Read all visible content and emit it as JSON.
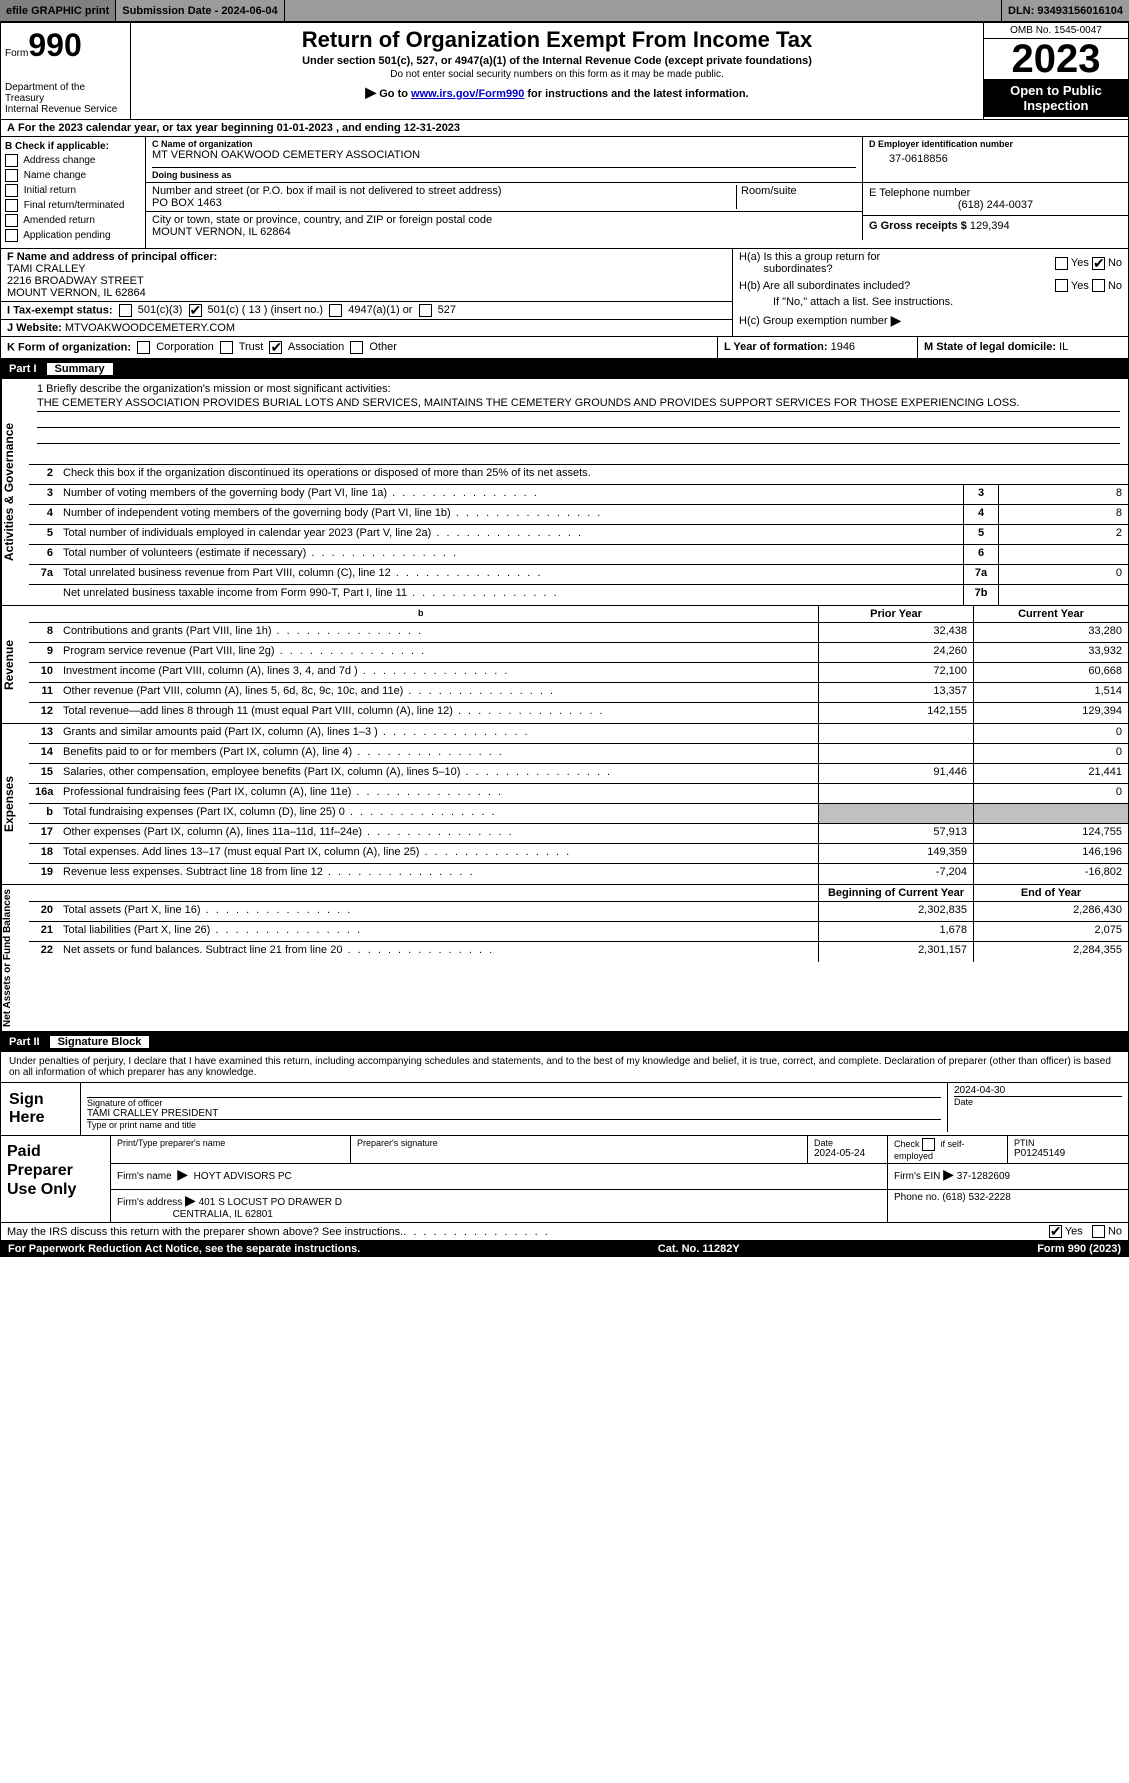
{
  "colors": {
    "topbar_bg": "#9b9b9b",
    "black": "#000000",
    "white": "#ffffff",
    "grey_cell": "#c0c0c0",
    "link": "#0000cc"
  },
  "topbar": {
    "efile": "efile GRAPHIC print",
    "submission": "Submission Date - 2024-06-04",
    "dln": "DLN: 93493156016104"
  },
  "header": {
    "form_label": "Form",
    "form_num": "990",
    "dept": "Department of the Treasury",
    "irs": "Internal Revenue Service",
    "title": "Return of Organization Exempt From Income Tax",
    "sub": "Under section 501(c), 527, or 4947(a)(1) of the Internal Revenue Code (except private foundations)",
    "warn": "Do not enter social security numbers on this form as it may be made public.",
    "goto_pre": "Go to ",
    "goto_link": "www.irs.gov/Form990",
    "goto_post": " for instructions and the latest information.",
    "omb": "OMB No. 1545-0047",
    "year": "2023",
    "inspection": "Open to Public Inspection"
  },
  "line_a": "For the 2023 calendar year, or tax year beginning 01-01-2023    , and ending 12-31-2023",
  "box_b": {
    "title": "B Check if applicable:",
    "items": [
      "Address change",
      "Name change",
      "Initial return",
      "Final return/terminated",
      "Amended return",
      "Application pending"
    ]
  },
  "box_c": {
    "lbl_name": "C Name of organization",
    "name": "MT VERNON OAKWOOD CEMETERY ASSOCIATION",
    "lbl_dba": "Doing business as",
    "lbl_street": "Number and street (or P.O. box if mail is not delivered to street address)",
    "street": "PO BOX 1463",
    "lbl_room": "Room/suite",
    "lbl_city": "City or town, state or province, country, and ZIP or foreign postal code",
    "city": "MOUNT VERNON, IL  62864"
  },
  "box_d": {
    "lbl": "D Employer identification number",
    "val": "37-0618856"
  },
  "box_e": {
    "lbl": "E Telephone number",
    "val": "(618) 244-0037"
  },
  "box_g": {
    "lbl": "G Gross receipts $",
    "val": "129,394"
  },
  "box_f": {
    "lbl": "F Name and address of principal officer:",
    "name": "TAMI CRALLEY",
    "street": "2216 BROADWAY STREET",
    "city": "MOUNT VERNON, IL  62864"
  },
  "box_h": {
    "ha_lbl": "H(a)  Is this a group return for",
    "ha_lbl2": "subordinates?",
    "hb_lbl": "H(b)  Are all subordinates included?",
    "hb_note": "If \"No,\" attach a list. See instructions.",
    "hc_lbl": "H(c)  Group exemption number",
    "yes": "Yes",
    "no": "No",
    "ha_no_checked": true
  },
  "box_i": {
    "lbl": "I    Tax-exempt status:",
    "opts": [
      "501(c)(3)",
      "501(c) ( 13 ) (insert no.)",
      "4947(a)(1) or",
      "527"
    ],
    "checked_index": 1
  },
  "box_j": {
    "lbl": "J    Website:",
    "val": "MTVOAKWOODCEMETERY.COM"
  },
  "box_k": {
    "lbl": "K Form of organization:",
    "opts": [
      "Corporation",
      "Trust",
      "Association",
      "Other"
    ],
    "checked_index": 2
  },
  "box_l": {
    "lbl": "L Year of formation:",
    "val": "1946"
  },
  "box_m": {
    "lbl": "M State of legal domicile:",
    "val": "IL"
  },
  "part1": {
    "header": "Part I",
    "title": "Summary",
    "side_labels": [
      "Activities & Governance",
      "Revenue",
      "Expenses",
      "Net Assets or Fund Balances"
    ],
    "q1_lbl": "1   Briefly describe the organization's mission or most significant activities:",
    "q1_text": "THE CEMETERY ASSOCIATION PROVIDES BURIAL LOTS AND SERVICES, MAINTAINS THE CEMETERY GROUNDS AND PROVIDES SUPPORT SERVICES FOR THOSE EXPERIENCING LOSS.",
    "q2": "Check this box       if the organization discontinued its operations or disposed of more than 25% of its net assets.",
    "gov_lines": [
      {
        "n": "3",
        "t": "Number of voting members of the governing body (Part VI, line 1a)",
        "box": "3",
        "v": "8"
      },
      {
        "n": "4",
        "t": "Number of independent voting members of the governing body (Part VI, line 1b)",
        "box": "4",
        "v": "8"
      },
      {
        "n": "5",
        "t": "Total number of individuals employed in calendar year 2023 (Part V, line 2a)",
        "box": "5",
        "v": "2"
      },
      {
        "n": "6",
        "t": "Total number of volunteers (estimate if necessary)",
        "box": "6",
        "v": ""
      },
      {
        "n": "7a",
        "t": "Total unrelated business revenue from Part VIII, column (C), line 12",
        "box": "7a",
        "v": "0"
      },
      {
        "n": "",
        "t": "Net unrelated business taxable income from Form 990-T, Part I, line 11",
        "box": "7b",
        "v": ""
      }
    ],
    "col_headers": {
      "spacer": "b",
      "prior": "Prior Year",
      "current": "Current Year"
    },
    "rev_lines": [
      {
        "n": "8",
        "t": "Contributions and grants (Part VIII, line 1h)",
        "p": "32,438",
        "c": "33,280"
      },
      {
        "n": "9",
        "t": "Program service revenue (Part VIII, line 2g)",
        "p": "24,260",
        "c": "33,932"
      },
      {
        "n": "10",
        "t": "Investment income (Part VIII, column (A), lines 3, 4, and 7d )",
        "p": "72,100",
        "c": "60,668"
      },
      {
        "n": "11",
        "t": "Other revenue (Part VIII, column (A), lines 5, 6d, 8c, 9c, 10c, and 11e)",
        "p": "13,357",
        "c": "1,514"
      },
      {
        "n": "12",
        "t": "Total revenue—add lines 8 through 11 (must equal Part VIII, column (A), line 12)",
        "p": "142,155",
        "c": "129,394"
      }
    ],
    "exp_lines": [
      {
        "n": "13",
        "t": "Grants and similar amounts paid (Part IX, column (A), lines 1–3 )",
        "p": "",
        "c": "0"
      },
      {
        "n": "14",
        "t": "Benefits paid to or for members (Part IX, column (A), line 4)",
        "p": "",
        "c": "0"
      },
      {
        "n": "15",
        "t": "Salaries, other compensation, employee benefits (Part IX, column (A), lines 5–10)",
        "p": "91,446",
        "c": "21,441"
      },
      {
        "n": "16a",
        "t": "Professional fundraising fees (Part IX, column (A), line 11e)",
        "p": "",
        "c": "0"
      },
      {
        "n": "b",
        "t": "Total fundraising expenses (Part IX, column (D), line 25) 0",
        "p": "grey",
        "c": "grey"
      },
      {
        "n": "17",
        "t": "Other expenses (Part IX, column (A), lines 11a–11d, 11f–24e)",
        "p": "57,913",
        "c": "124,755"
      },
      {
        "n": "18",
        "t": "Total expenses. Add lines 13–17 (must equal Part IX, column (A), line 25)",
        "p": "149,359",
        "c": "146,196"
      },
      {
        "n": "19",
        "t": "Revenue less expenses. Subtract line 18 from line 12",
        "p": "-7,204",
        "c": "-16,802"
      }
    ],
    "net_headers": {
      "begin": "Beginning of Current Year",
      "end": "End of Year"
    },
    "net_lines": [
      {
        "n": "20",
        "t": "Total assets (Part X, line 16)",
        "p": "2,302,835",
        "c": "2,286,430"
      },
      {
        "n": "21",
        "t": "Total liabilities (Part X, line 26)",
        "p": "1,678",
        "c": "2,075"
      },
      {
        "n": "22",
        "t": "Net assets or fund balances. Subtract line 21 from line 20",
        "p": "2,301,157",
        "c": "2,284,355"
      }
    ]
  },
  "part2": {
    "header": "Part II",
    "title": "Signature Block",
    "declaration": "Under penalties of perjury, I declare that I have examined this return, including accompanying schedules and statements, and to the best of my knowledge and belief, it is true, correct, and complete. Declaration of preparer (other than officer) is based on all information of which preparer has any knowledge."
  },
  "sign": {
    "label": "Sign Here",
    "sig_lbl": "Signature of officer",
    "name": "TAMI CRALLEY PRESIDENT",
    "typed_lbl": "Type or print name and title",
    "date_lbl": "Date",
    "date": "2024-04-30"
  },
  "paid": {
    "label": "Paid Preparer Use Only",
    "h_name": "Print/Type preparer's name",
    "h_sig": "Preparer's signature",
    "h_date": "Date",
    "date": "2024-05-24",
    "h_check": "Check        if self-employed",
    "h_ptin": "PTIN",
    "ptin": "P01245149",
    "firm_lbl": "Firm's name",
    "firm": "HOYT ADVISORS PC",
    "ein_lbl": "Firm's EIN",
    "ein": "37-1282609",
    "addr_lbl": "Firm's address",
    "addr": "401 S LOCUST PO DRAWER D",
    "addr2": "CENTRALIA, IL  62801",
    "phone_lbl": "Phone no.",
    "phone": "(618) 532-2228"
  },
  "discuss": {
    "text": "May the IRS discuss this return with the preparer shown above? See instructions.",
    "yes": "Yes",
    "no": "No",
    "yes_checked": true
  },
  "footer": {
    "left": "For Paperwork Reduction Act Notice, see the separate instructions.",
    "mid": "Cat. No. 11282Y",
    "right": "Form 990 (2023)"
  }
}
